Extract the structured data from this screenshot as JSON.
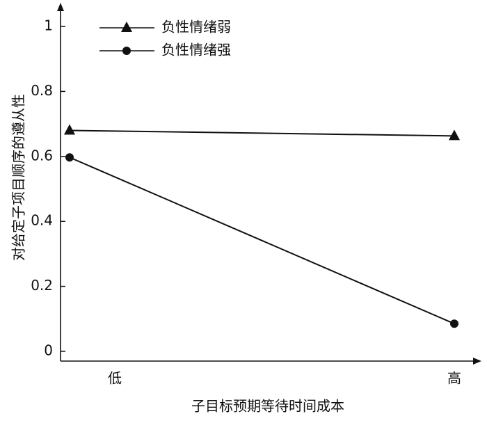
{
  "chart_data": {
    "type": "line",
    "categories": [
      "低",
      "高"
    ],
    "series": [
      {
        "name": "负性情绪弱",
        "color": "#111111",
        "marker": "triangle",
        "values": [
          0.68,
          0.663
        ]
      },
      {
        "name": "负性情绪强",
        "color": "#111111",
        "marker": "circle",
        "values": [
          0.597,
          0.085
        ]
      }
    ],
    "ylim": [
      -0.03,
      1.06
    ],
    "yticks": [
      0,
      0.2,
      0.4,
      0.6,
      0.8,
      1
    ],
    "y_label": "对给定子项目顺序的遵从性",
    "x_label": "子目标预期等待时间成本",
    "legend": "top-left"
  }
}
